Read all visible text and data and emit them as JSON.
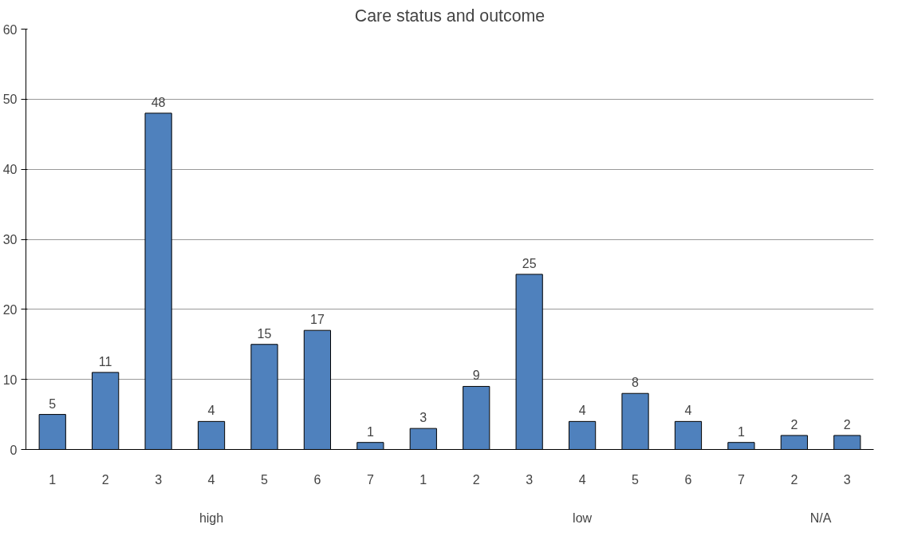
{
  "chart_data": {
    "type": "bar",
    "title": "Care status and outcome",
    "categories": [
      "1",
      "2",
      "3",
      "4",
      "5",
      "6",
      "7",
      "1",
      "2",
      "3",
      "4",
      "5",
      "6",
      "7",
      "2",
      "3"
    ],
    "values": [
      5,
      11,
      48,
      4,
      15,
      17,
      1,
      3,
      9,
      25,
      4,
      8,
      4,
      1,
      2,
      2
    ],
    "color": "#4f81bd",
    "annotations": [
      "high",
      "low",
      "N/A"
    ],
    "ylim": [
      0,
      60
    ],
    "yticks": [
      0,
      10,
      20,
      30,
      40,
      50,
      60
    ],
    "grid": "y",
    "data_labels": true
  }
}
